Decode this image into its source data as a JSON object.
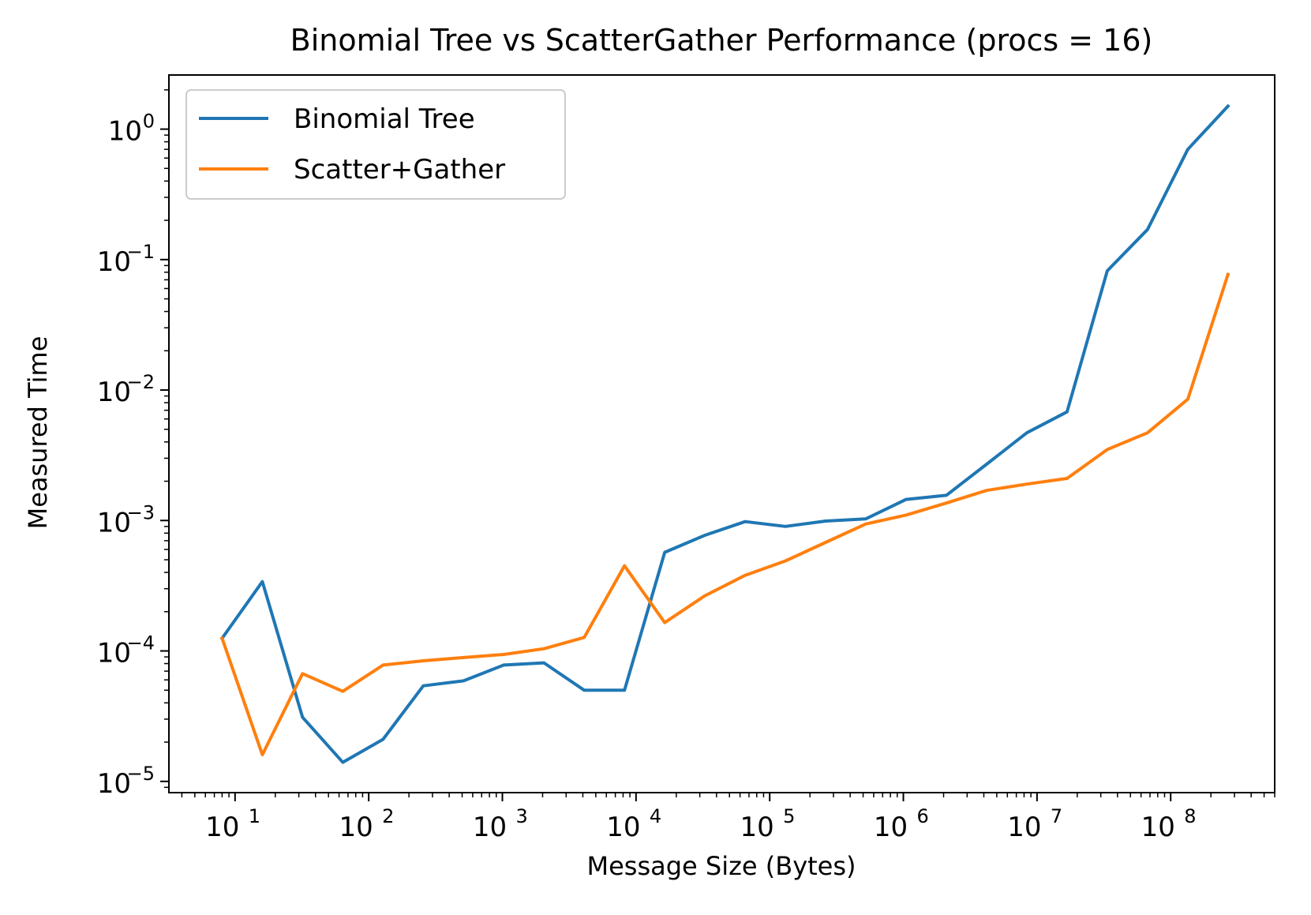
{
  "chart_data": {
    "type": "line",
    "title": "Binomial Tree vs ScatterGather Performance (procs = 16)",
    "xlabel": "Message Size (Bytes)",
    "ylabel": "Measured Time",
    "x_scale": "log",
    "y_scale": "log",
    "xlim": [
      3.2,
      600000000
    ],
    "ylim": [
      8.2e-06,
      2.6
    ],
    "x_ticks": [
      {
        "value": 10,
        "base": "10",
        "exp": "1"
      },
      {
        "value": 100,
        "base": "10",
        "exp": "2"
      },
      {
        "value": 1000,
        "base": "10",
        "exp": "3"
      },
      {
        "value": 10000,
        "base": "10",
        "exp": "4"
      },
      {
        "value": 100000,
        "base": "10",
        "exp": "5"
      },
      {
        "value": 1000000,
        "base": "10",
        "exp": "6"
      },
      {
        "value": 10000000,
        "base": "10",
        "exp": "7"
      },
      {
        "value": 100000000,
        "base": "10",
        "exp": "8"
      }
    ],
    "y_ticks": [
      {
        "value": 1e-05,
        "base": "10",
        "exp": "−5"
      },
      {
        "value": 0.0001,
        "base": "10",
        "exp": "−4"
      },
      {
        "value": 0.001,
        "base": "10",
        "exp": "−3"
      },
      {
        "value": 0.01,
        "base": "10",
        "exp": "−2"
      },
      {
        "value": 0.1,
        "base": "10",
        "exp": "−1"
      },
      {
        "value": 1,
        "base": "10",
        "exp": "0"
      }
    ],
    "grid": false,
    "legend_position": "top-left",
    "x": [
      8,
      16,
      32,
      64,
      128,
      256,
      512,
      1024,
      2048,
      4096,
      8192,
      16384,
      32768,
      65536,
      131072,
      262144,
      524288,
      1048576,
      2097152,
      4194304,
      8388608,
      16777216,
      33554432,
      67108864,
      134217728,
      268435456
    ],
    "series": [
      {
        "name": "Binomial Tree",
        "color": "#1f77b4",
        "values": [
          0.000125,
          0.00034,
          3.1e-05,
          1.4e-05,
          2.1e-05,
          5.4e-05,
          5.9e-05,
          7.8e-05,
          8.1e-05,
          5e-05,
          5e-05,
          0.00057,
          0.00077,
          0.00098,
          0.0009,
          0.00099,
          0.00103,
          0.00145,
          0.00156,
          0.0027,
          0.0047,
          0.0068,
          0.082,
          0.17,
          0.7,
          1.5
        ]
      },
      {
        "name": "Scatter+Gather",
        "color": "#ff7f0e",
        "values": [
          0.000125,
          1.6e-05,
          6.7e-05,
          4.9e-05,
          7.8e-05,
          8.4e-05,
          8.9e-05,
          9.4e-05,
          0.000104,
          0.000127,
          0.00045,
          0.000165,
          0.000265,
          0.00038,
          0.00049,
          0.00068,
          0.00094,
          0.0011,
          0.00136,
          0.0017,
          0.0019,
          0.0021,
          0.0035,
          0.0047,
          0.0085,
          0.077
        ]
      }
    ]
  }
}
